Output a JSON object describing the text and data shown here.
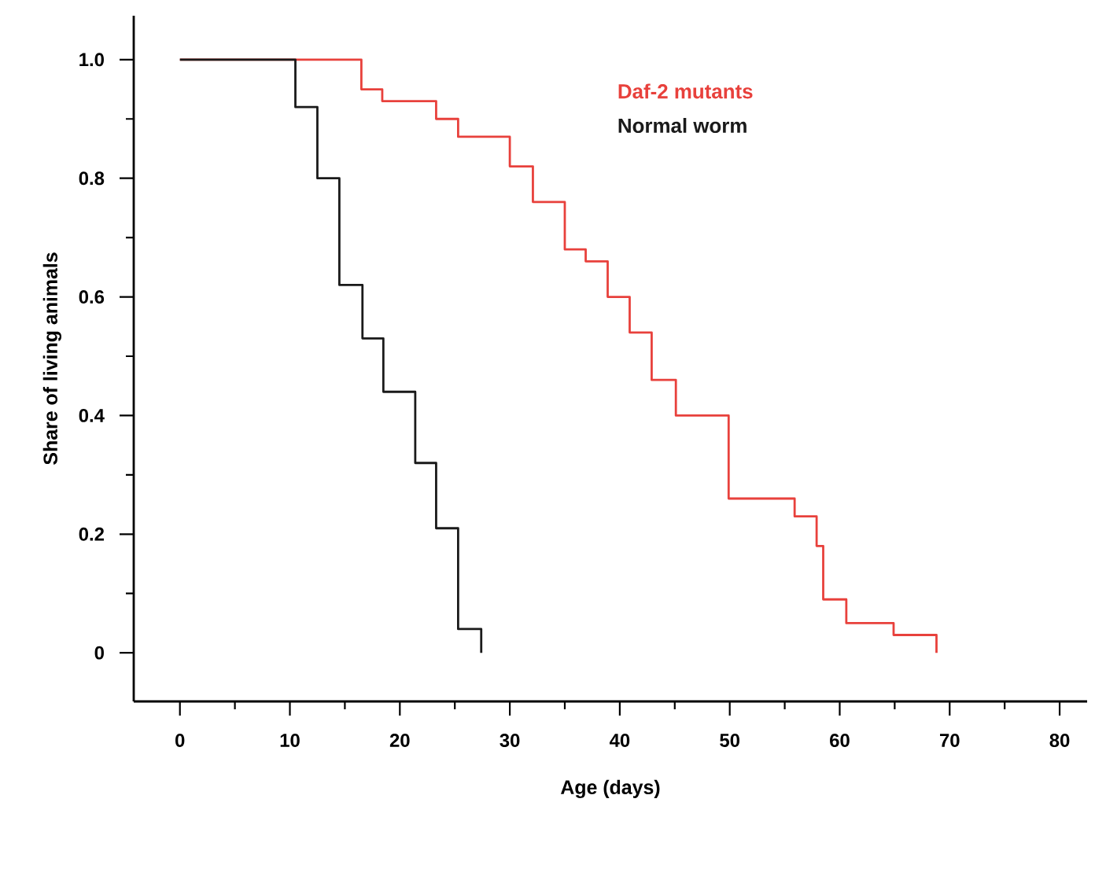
{
  "chart_data": {
    "type": "step",
    "xlabel": "Age (days)",
    "ylabel": "Share of living animals",
    "legend": "top",
    "xlim": [
      -4.2,
      82.5
    ],
    "ylim": [
      -0.082,
      1.074
    ],
    "xticks": [
      0,
      {
        "value": 5,
        "label": null
      },
      10,
      {
        "value": 15,
        "label": null
      },
      20,
      {
        "value": 25,
        "label": null
      },
      30,
      {
        "value": 35,
        "label": null
      },
      40,
      {
        "value": 45,
        "label": null
      },
      50,
      {
        "value": 55,
        "label": null
      },
      60,
      {
        "value": 65,
        "label": null
      },
      70,
      {
        "value": 75,
        "label": null
      },
      80
    ],
    "yticks": [
      0,
      {
        "value": 0.1,
        "label": null
      },
      {
        "value": 0.2,
        "label": "0.2"
      },
      {
        "value": 0.3,
        "label": null
      },
      {
        "value": 0.4,
        "label": "0.4"
      },
      {
        "value": 0.5,
        "label": null
      },
      {
        "value": 0.6,
        "label": "0.6"
      },
      {
        "value": 0.7,
        "label": null
      },
      {
        "value": 0.8,
        "label": "0.8"
      },
      {
        "value": 0.9,
        "label": null
      },
      {
        "value": 1,
        "label": "1.0"
      }
    ],
    "series": [
      {
        "name": "Daf-2 mutants",
        "color": "#e8413c",
        "x": [
          0,
          16.5,
          18.4,
          23.3,
          25.3,
          30,
          32.1,
          35,
          36.9,
          38.9,
          40.9,
          42.9,
          45.1,
          49.9,
          55.9,
          57.9,
          58.5,
          60.6,
          64.9,
          68.8
        ],
        "values": [
          1,
          0.95,
          0.93,
          0.9,
          0.87,
          0.82,
          0.76,
          0.68,
          0.66,
          0.6,
          0.54,
          0.46,
          0.4,
          0.26,
          0.23,
          0.18,
          0.09,
          0.05,
          0.03,
          0
        ]
      },
      {
        "name": "Normal worm",
        "color": "#1a1a1a",
        "x": [
          0,
          10.5,
          12.5,
          14.5,
          16.6,
          18.5,
          21.4,
          23.3,
          25.3,
          27.4
        ],
        "values": [
          1,
          0.92,
          0.8,
          0.62,
          0.53,
          0.44,
          0.32,
          0.21,
          0.04,
          0
        ]
      }
    ]
  }
}
